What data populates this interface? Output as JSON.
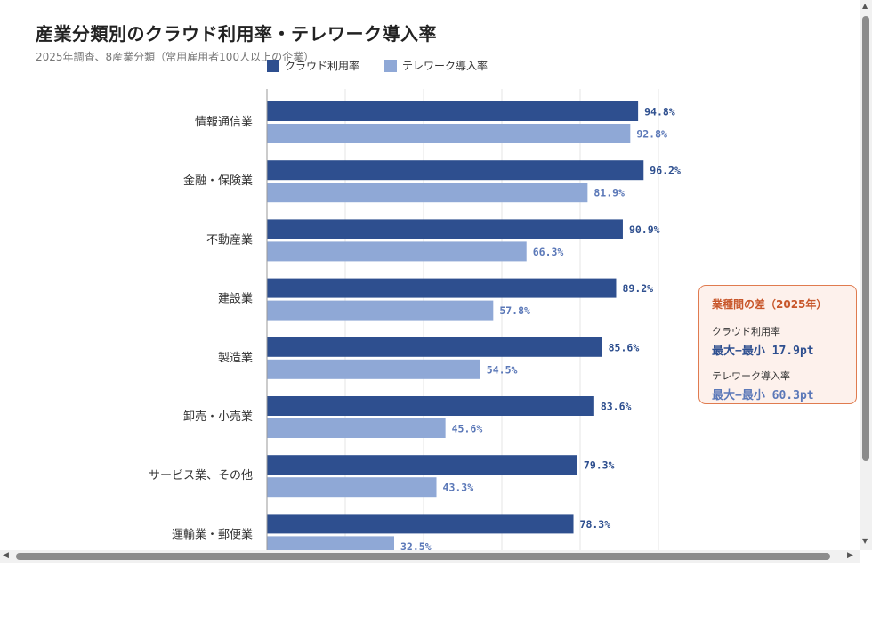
{
  "chart_data": {
    "type": "bar",
    "orientation": "horizontal",
    "title": "産業分類別のクラウド利用率・テレワーク導入率",
    "subtitle": "2025年調査、8産業分類（常用雇用者100人以上の企業）",
    "categories": [
      "情報通信業",
      "金融・保険業",
      "不動産業",
      "建設業",
      "製造業",
      "卸売・小売業",
      "サービス業、その他",
      "運輸業・郵便業"
    ],
    "series": [
      {
        "name": "クラウド利用率",
        "color": "#2e4f8f",
        "values": [
          94.8,
          96.2,
          90.9,
          89.2,
          85.6,
          83.6,
          79.3,
          78.3
        ],
        "labels": [
          "94.8%",
          "96.2%",
          "90.9%",
          "89.2%",
          "85.6%",
          "83.6%",
          "79.3%",
          "78.3%"
        ]
      },
      {
        "name": "テレワーク導入率",
        "color": "#8fa8d6",
        "values": [
          92.8,
          81.9,
          66.3,
          57.8,
          54.5,
          45.6,
          43.3,
          32.5
        ],
        "labels": [
          "92.8%",
          "81.9%",
          "66.3%",
          "57.8%",
          "54.5%",
          "45.6%",
          "43.3%",
          "32.5%"
        ]
      }
    ],
    "xlim": [
      0,
      100
    ],
    "grid": true,
    "legend": "top-left",
    "value_label_colors": [
      "#2e4f8f",
      "#5b78b8"
    ]
  },
  "callout": {
    "title": "業種間の差（2025年）",
    "items": [
      {
        "label": "クラウド利用率",
        "value": "最大−最小 17.9pt",
        "color": "#2e4f8f"
      },
      {
        "label": "テレワーク導入率",
        "value": "最大−最小 60.3pt",
        "color": "#5b78b8"
      }
    ],
    "border_color": "#e07b4f"
  },
  "scrollbars": {
    "up": "▲",
    "down": "▼",
    "left": "◀",
    "right": "▶"
  }
}
